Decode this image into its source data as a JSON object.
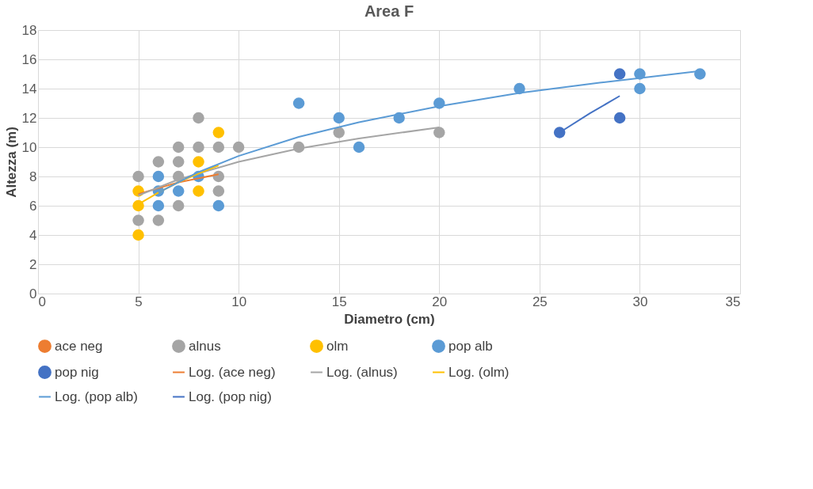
{
  "chart_data": {
    "type": "scatter",
    "title": "Area F",
    "xlabel": "Diametro (cm)",
    "ylabel": "Altezza (m)",
    "xlim": [
      0,
      35
    ],
    "xticks": [
      0,
      5,
      10,
      15,
      20,
      25,
      30,
      35
    ],
    "ylim": [
      0,
      18
    ],
    "yticks": [
      0,
      2,
      4,
      6,
      8,
      10,
      12,
      14,
      16,
      18
    ],
    "grid": true,
    "legend": "bottom",
    "marker": "circle",
    "series": [
      {
        "name": "ace neg",
        "color": "#ed7d31"
      },
      {
        "name": "alnus",
        "color": "#a5a5a5",
        "x": [
          5,
          5,
          6,
          6,
          7,
          7,
          7,
          7,
          8,
          8,
          9,
          9,
          9,
          10,
          13,
          15,
          20
        ],
        "values": [
          8,
          5,
          9,
          5,
          10,
          9,
          8,
          6,
          12,
          10,
          10,
          8,
          7,
          10,
          10,
          11,
          11
        ]
      },
      {
        "name": "olm",
        "color": "#ffc000",
        "x": [
          5,
          5,
          5,
          8,
          8,
          9
        ],
        "values": [
          7,
          6,
          4,
          9,
          7,
          11
        ]
      },
      {
        "name": "pop alb",
        "color": "#5b9bd5",
        "x": [
          6,
          6,
          6,
          7,
          8,
          9,
          13,
          15,
          16,
          18,
          20,
          24,
          30,
          30,
          33
        ],
        "values": [
          8,
          7,
          6,
          7,
          8,
          6,
          13,
          12,
          10,
          12,
          13,
          14,
          15,
          14,
          15
        ]
      },
      {
        "name": "pop nig",
        "color": "#4472c4",
        "x": [
          26,
          29,
          29
        ],
        "values": [
          11,
          15,
          12
        ]
      },
      {
        "name": "Log. (ace neg)",
        "type": "line",
        "marker": "none",
        "line_style": "solid",
        "color": "#ed7d31",
        "x": [
          5,
          7,
          9
        ],
        "values": [
          6.8,
          7.6,
          8.15
        ]
      },
      {
        "name": "Log. (alnus)",
        "type": "line",
        "marker": "none",
        "line_style": "solid",
        "color": "#a5a5a5",
        "x": [
          5,
          7,
          10,
          13,
          16,
          20
        ],
        "values": [
          6.7,
          7.8,
          9.0,
          9.9,
          10.6,
          11.35
        ]
      },
      {
        "name": "Log. (olm)",
        "type": "line",
        "marker": "none",
        "line_style": "solid",
        "color": "#ffc000",
        "x": [
          5,
          6,
          7,
          8,
          9
        ],
        "values": [
          6.1,
          6.9,
          7.6,
          8.2,
          8.75
        ]
      },
      {
        "name": "Log. (pop alb)",
        "type": "line",
        "marker": "none",
        "line_style": "solid",
        "color": "#5b9bd5",
        "x": [
          6,
          8,
          10,
          13,
          16,
          20,
          24,
          28,
          33
        ],
        "values": [
          6.9,
          8.3,
          9.4,
          10.7,
          11.7,
          12.8,
          13.7,
          14.4,
          15.2
        ]
      },
      {
        "name": "Log. (pop nig)",
        "type": "line",
        "marker": "none",
        "line_style": "solid",
        "color": "#4472c4",
        "x": [
          26,
          27.5,
          29
        ],
        "values": [
          11,
          12.3,
          13.5
        ]
      }
    ]
  }
}
